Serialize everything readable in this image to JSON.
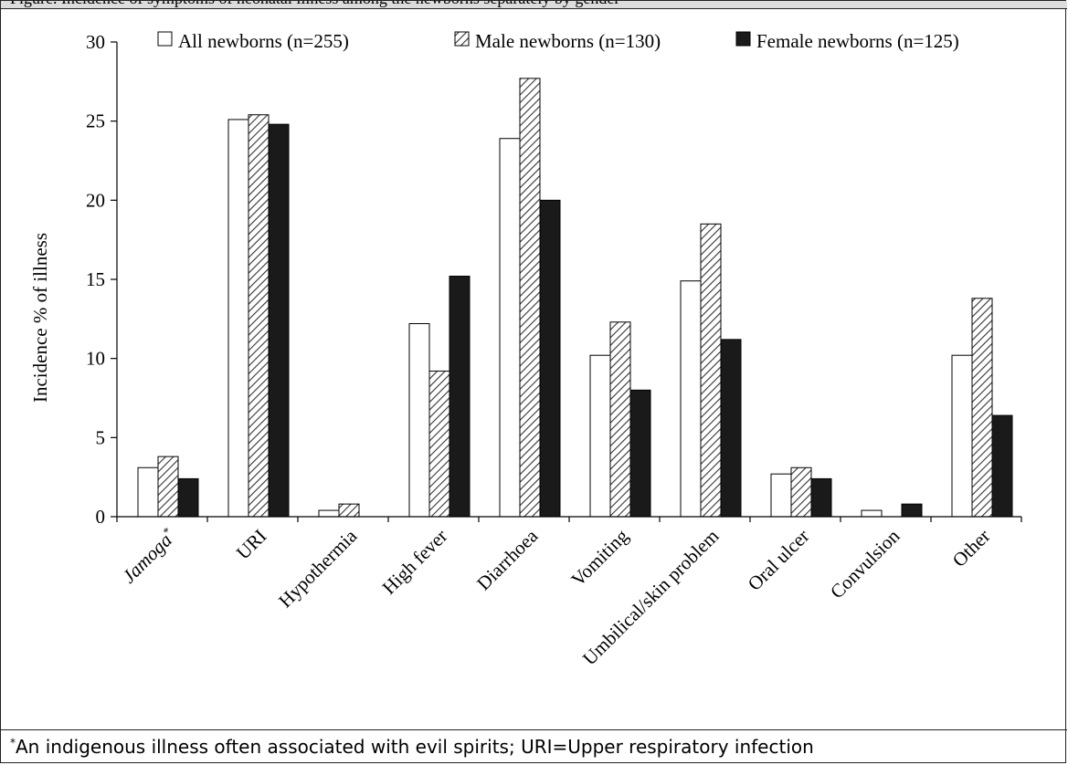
{
  "header": {
    "text": "Figure. Incidence of symptoms of neonatal illness among the newborns separately by gender"
  },
  "footnote": {
    "marker": "*",
    "text": "An indigenous illness often associated with evil spirits; URI=Upper respiratory infection"
  },
  "chart_data": {
    "type": "bar",
    "ylabel": "Incidence % of illness",
    "xlabel": "",
    "ylim": [
      0,
      30
    ],
    "yticks": [
      0,
      5,
      10,
      15,
      20,
      25,
      30
    ],
    "grid": false,
    "legend_position": "top",
    "categories": [
      "Jamoga",
      "URI",
      "Hypothermia",
      "High fever",
      "Diarrhoea",
      "Vomiting",
      "Umbilical/skin problem",
      "Oral ulcer",
      "Convulsion",
      "Other"
    ],
    "category_marker": {
      "Jamoga": "*"
    },
    "series": [
      {
        "name": "All newborns (n=255)",
        "fill": "white",
        "values": [
          3.1,
          25.1,
          0.4,
          12.2,
          23.9,
          10.2,
          14.9,
          2.7,
          0.4,
          10.2
        ]
      },
      {
        "name": "Male newborns (n=130)",
        "fill": "hatch",
        "values": [
          3.8,
          25.4,
          0.8,
          9.2,
          27.7,
          12.3,
          18.5,
          3.1,
          0,
          13.8
        ]
      },
      {
        "name": "Female newborns (n=125)",
        "fill": "black",
        "values": [
          2.4,
          24.8,
          0,
          15.2,
          20.0,
          8.0,
          11.2,
          2.4,
          0.8,
          6.4
        ]
      }
    ],
    "colors": {
      "white": "#ffffff",
      "hatch_line": "#333333",
      "black": "#1a1a1a",
      "axis": "#000000"
    }
  }
}
